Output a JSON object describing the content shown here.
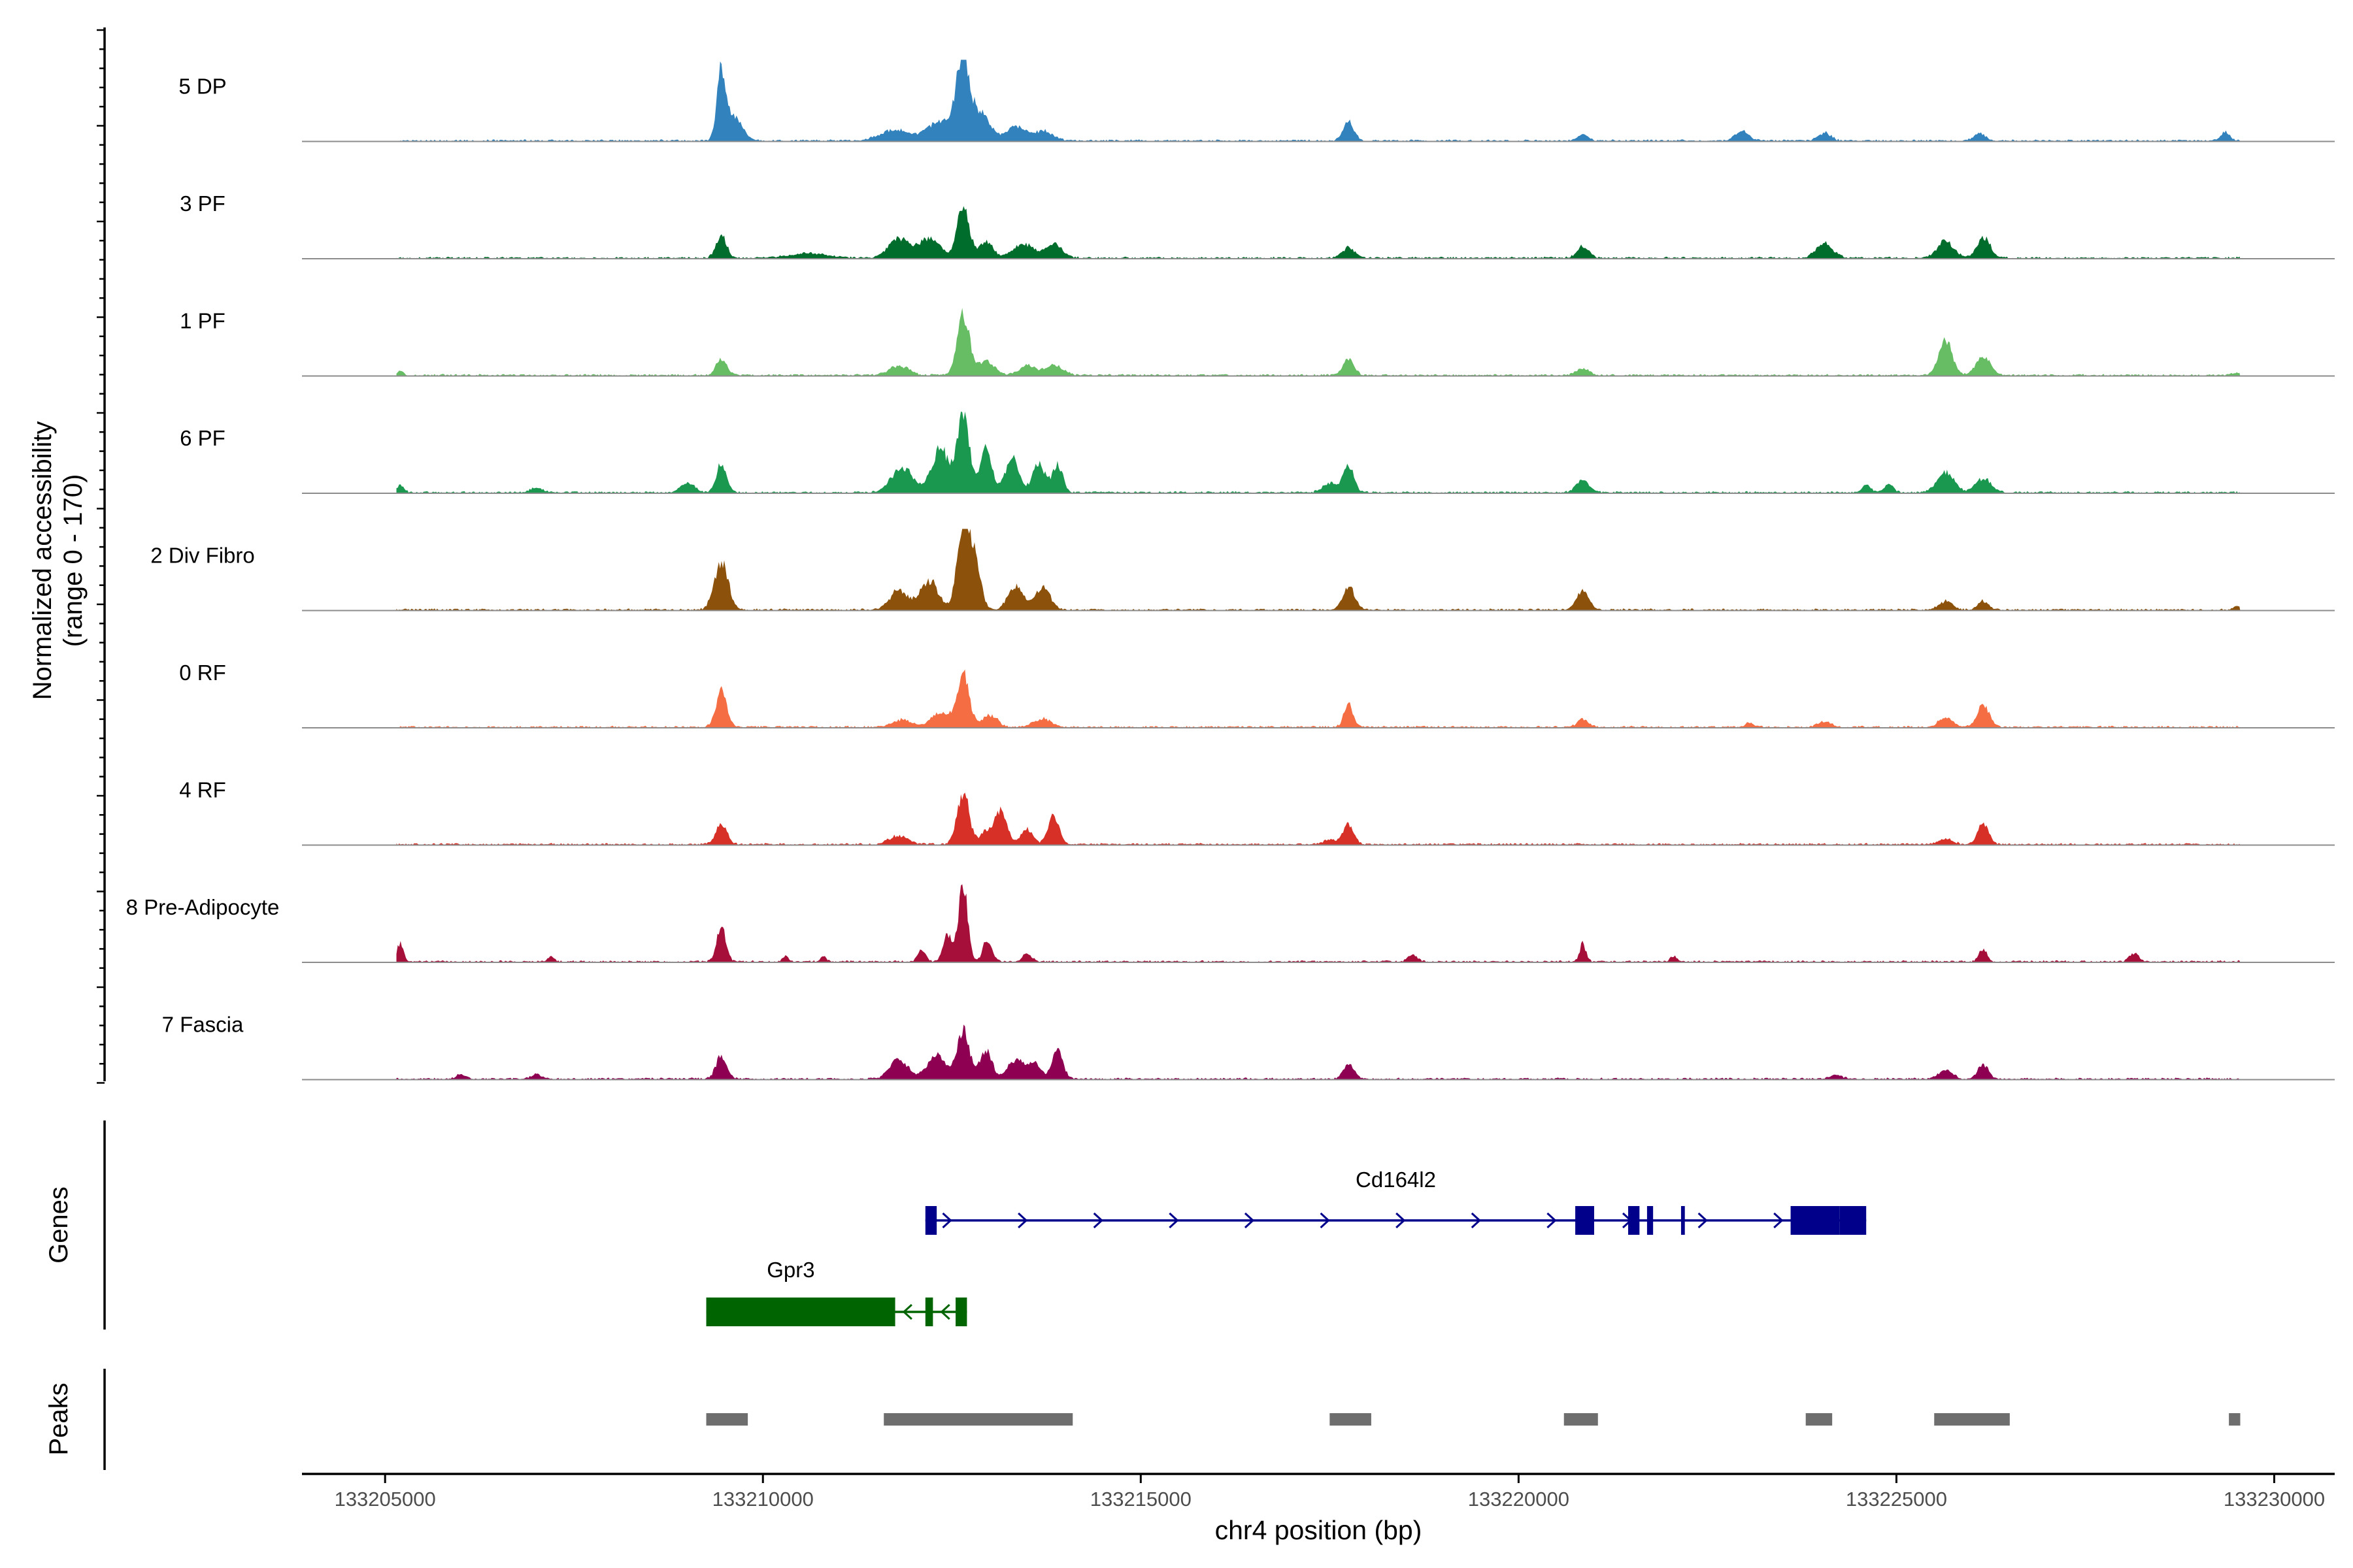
{
  "chart_data": {
    "type": "area",
    "title": "",
    "ylabel_line1": "Normalized accessibility",
    "ylabel_line2": "(range 0 - 170)",
    "ylim": [
      0,
      170
    ],
    "xlabel": "chr4 position (bp)",
    "xlim": [
      133203900,
      133230800
    ],
    "region_start": 133205150,
    "region_end": 133229550,
    "x_ticks": [
      133205000,
      133210000,
      133215000,
      133220000,
      133225000,
      133230000
    ],
    "x_tick_labels": [
      "133205000",
      "133210000",
      "133215000",
      "133220000",
      "133225000",
      "133230000"
    ],
    "section_labels": {
      "genes": "Genes",
      "peaks": "Peaks"
    },
    "series": [
      {
        "name": "5 DP",
        "color": "#3182BD",
        "peaks": [
          [
            133209450,
            130,
            55
          ],
          [
            133209600,
            50,
            120
          ],
          [
            133212640,
            160,
            80
          ],
          [
            133212850,
            60,
            150
          ],
          [
            133212350,
            40,
            170
          ],
          [
            133211750,
            22,
            200
          ],
          [
            133213350,
            30,
            110
          ],
          [
            133213700,
            20,
            130
          ],
          [
            133217750,
            38,
            70
          ],
          [
            133220850,
            13,
            70
          ],
          [
            133222950,
            20,
            90
          ],
          [
            133224050,
            16,
            80
          ],
          [
            133226100,
            16,
            70
          ],
          [
            133229350,
            18,
            60
          ]
        ]
      },
      {
        "name": "3 PF",
        "color": "#006D2C",
        "peaks": [
          [
            133209450,
            45,
            70
          ],
          [
            133212650,
            105,
            80
          ],
          [
            133212950,
            35,
            90
          ],
          [
            133211800,
            40,
            130
          ],
          [
            133212200,
            40,
            140
          ],
          [
            133213450,
            28,
            140
          ],
          [
            133213850,
            30,
            110
          ],
          [
            133217750,
            22,
            80
          ],
          [
            133220850,
            24,
            80
          ],
          [
            133224050,
            30,
            110
          ],
          [
            133225650,
            34,
            110
          ],
          [
            133226150,
            42,
            90
          ],
          [
            133210600,
            10,
            250
          ]
        ]
      },
      {
        "name": "1 PF",
        "color": "#66BD63",
        "peaks": [
          [
            133209450,
            35,
            70
          ],
          [
            133212650,
            125,
            80
          ],
          [
            133212950,
            30,
            110
          ],
          [
            133211800,
            20,
            130
          ],
          [
            133213500,
            20,
            110
          ],
          [
            133213850,
            22,
            110
          ],
          [
            133217750,
            35,
            70
          ],
          [
            133220850,
            15,
            80
          ],
          [
            133225650,
            72,
            90
          ],
          [
            133226150,
            40,
            90
          ],
          [
            133205200,
            10,
            40
          ],
          [
            133229500,
            6,
            60
          ]
        ]
      },
      {
        "name": "6 PF",
        "color": "#1A9850",
        "peaks": [
          [
            133209450,
            58,
            70
          ],
          [
            133209000,
            20,
            90
          ],
          [
            133212650,
            170,
            80
          ],
          [
            133212350,
            90,
            110
          ],
          [
            133211850,
            50,
            150
          ],
          [
            133212950,
            90,
            80
          ],
          [
            133213300,
            70,
            90
          ],
          [
            133213650,
            60,
            80
          ],
          [
            133213900,
            55,
            70
          ],
          [
            133217750,
            58,
            70
          ],
          [
            133217500,
            20,
            90
          ],
          [
            133220850,
            24,
            90
          ],
          [
            133225650,
            42,
            110
          ],
          [
            133226150,
            30,
            100
          ],
          [
            133205200,
            16,
            50
          ],
          [
            133207000,
            10,
            80
          ],
          [
            133224600,
            15,
            60
          ],
          [
            133224900,
            18,
            60
          ]
        ]
      },
      {
        "name": "2 Div Fibro",
        "color": "#8C510A",
        "peaks": [
          [
            133209450,
            100,
            90
          ],
          [
            133212650,
            170,
            80
          ],
          [
            133212800,
            100,
            80
          ],
          [
            133212200,
            60,
            120
          ],
          [
            133211800,
            40,
            120
          ],
          [
            133213350,
            50,
            100
          ],
          [
            133213700,
            45,
            100
          ],
          [
            133217750,
            48,
            80
          ],
          [
            133220850,
            40,
            80
          ],
          [
            133225650,
            18,
            90
          ],
          [
            133226150,
            18,
            70
          ],
          [
            133229500,
            8,
            40
          ]
        ]
      },
      {
        "name": "0 RF",
        "color": "#F46D43",
        "peaks": [
          [
            133209450,
            75,
            70
          ],
          [
            133212650,
            110,
            80
          ],
          [
            133212350,
            30,
            120
          ],
          [
            133213000,
            25,
            100
          ],
          [
            133211850,
            15,
            130
          ],
          [
            133213700,
            18,
            110
          ],
          [
            133217750,
            48,
            60
          ],
          [
            133220850,
            18,
            70
          ],
          [
            133224050,
            12,
            80
          ],
          [
            133226150,
            48,
            80
          ],
          [
            133225650,
            20,
            90
          ],
          [
            133223050,
            8,
            60
          ]
        ]
      },
      {
        "name": "4 RF",
        "color": "#D73027",
        "peaks": [
          [
            133209450,
            45,
            70
          ],
          [
            133212650,
            108,
            80
          ],
          [
            133213150,
            68,
            80
          ],
          [
            133213850,
            60,
            70
          ],
          [
            133213500,
            30,
            80
          ],
          [
            133212950,
            25,
            80
          ],
          [
            133211800,
            18,
            120
          ],
          [
            133217750,
            40,
            70
          ],
          [
            133217500,
            10,
            80
          ],
          [
            133226150,
            45,
            70
          ],
          [
            133225650,
            12,
            90
          ]
        ]
      },
      {
        "name": "8 Pre-Adipocyte",
        "color": "#A50F39",
        "peaks": [
          [
            133205200,
            38,
            40
          ],
          [
            133209450,
            75,
            60
          ],
          [
            133212650,
            160,
            60
          ],
          [
            133212450,
            55,
            60
          ],
          [
            133212950,
            30,
            50
          ],
          [
            133212100,
            25,
            50
          ],
          [
            133213000,
            20,
            60
          ],
          [
            133213500,
            18,
            60
          ],
          [
            133220850,
            38,
            40
          ],
          [
            133226150,
            28,
            50
          ],
          [
            133228150,
            18,
            60
          ],
          [
            133207200,
            12,
            40
          ],
          [
            133210300,
            12,
            40
          ],
          [
            133210800,
            10,
            40
          ],
          [
            133218600,
            14,
            60
          ],
          [
            133222050,
            12,
            40
          ]
        ]
      },
      {
        "name": "7 Fascia",
        "color": "#8E0152",
        "peaks": [
          [
            133209450,
            48,
            70
          ],
          [
            133212650,
            100,
            80
          ],
          [
            133212300,
            50,
            120
          ],
          [
            133212950,
            60,
            80
          ],
          [
            133211800,
            40,
            120
          ],
          [
            133213350,
            40,
            110
          ],
          [
            133213900,
            58,
            70
          ],
          [
            133213600,
            30,
            80
          ],
          [
            133217750,
            30,
            70
          ],
          [
            133225650,
            18,
            90
          ],
          [
            133226150,
            30,
            70
          ],
          [
            133206000,
            10,
            60
          ],
          [
            133207000,
            10,
            70
          ],
          [
            133224200,
            8,
            80
          ]
        ]
      }
    ],
    "genes": [
      {
        "name": "Cd164l2",
        "strand": "+",
        "color": "#00008B",
        "start": 133212150,
        "end": 133224600,
        "exons": [
          [
            133212150,
            133212300
          ],
          [
            133220750,
            133221000
          ],
          [
            133221450,
            133221600
          ],
          [
            133221700,
            133221780
          ],
          [
            133222150,
            133222200
          ],
          [
            133223600,
            133224250
          ],
          [
            133224250,
            133224600
          ]
        ]
      },
      {
        "name": "Gpr3",
        "strand": "-",
        "color": "#006400",
        "start": 133209250,
        "end": 133212700,
        "exons": [
          [
            133209250,
            133211750
          ],
          [
            133212150,
            133212250
          ],
          [
            133212550,
            133212700
          ]
        ]
      }
    ],
    "peaks": [
      [
        133209250,
        133209800
      ],
      [
        133211600,
        133214100
      ],
      [
        133217500,
        133218050
      ],
      [
        133220600,
        133221050
      ],
      [
        133223800,
        133224150
      ],
      [
        133225500,
        133226500
      ],
      [
        133229400,
        133229550
      ]
    ],
    "peaks_color": "#6E6E6E"
  }
}
